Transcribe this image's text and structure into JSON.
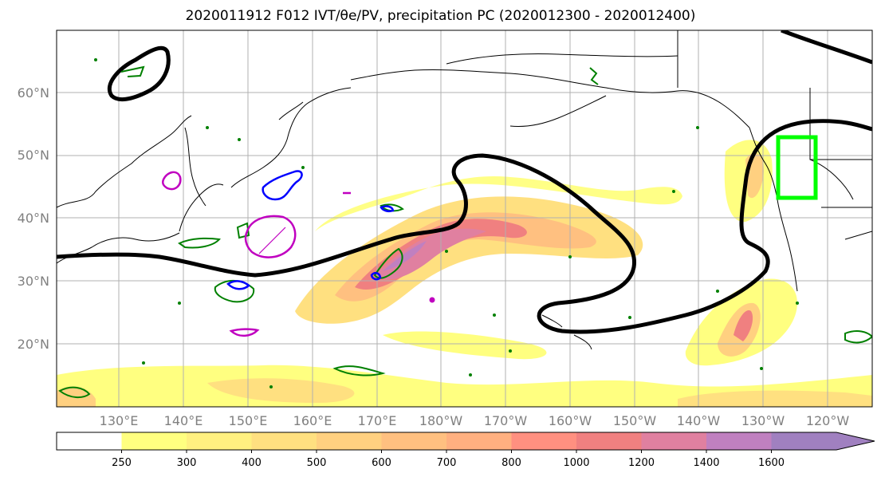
{
  "title": "2020011912 F012 IVT/θe/PV, precipitation PC (2020012300 - 2020012400)",
  "map": {
    "lat_labels": [
      "60°N",
      "50°N",
      "40°N",
      "30°N",
      "20°N"
    ],
    "lon_labels": [
      "130°E",
      "140°E",
      "150°E",
      "160°E",
      "170°E",
      "180°W",
      "170°W",
      "160°W",
      "150°W",
      "140°W",
      "130°W",
      "120°W"
    ]
  },
  "colorbar": {
    "levels": [
      "250",
      "300",
      "400",
      "500",
      "600",
      "700",
      "800",
      "1000",
      "1200",
      "1400",
      "1600"
    ],
    "colors": [
      "#ffff80",
      "#fff080",
      "#ffe080",
      "#ffd080",
      "#ffc080",
      "#ffb080",
      "#ff9080",
      "#f08080",
      "#e080a0",
      "#c080c0",
      "#a080c0"
    ]
  },
  "overlay_colors": {
    "theta_e_contour": "#000000",
    "pv_positive": "#008000",
    "pv_blue": "#0000ff",
    "pv_magenta": "#c000c0",
    "precip_box": "#00ff00"
  }
}
